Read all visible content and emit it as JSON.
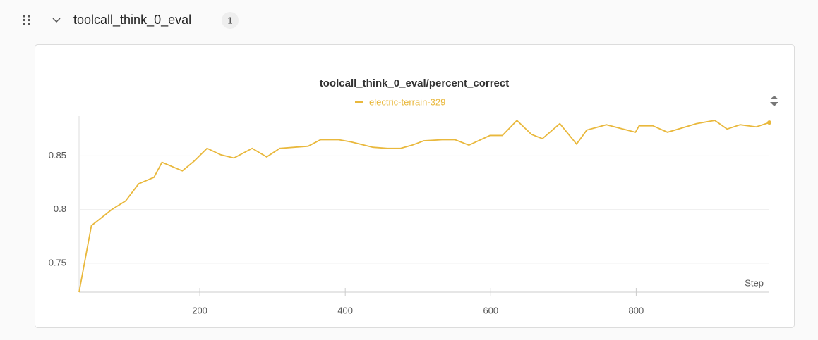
{
  "section": {
    "title": "toolcall_think_0_eval",
    "count": "1"
  },
  "chart_data": {
    "type": "line",
    "title": "toolcall_think_0_eval/percent_correct",
    "x_label": "Step",
    "x": [
      34,
      51,
      79,
      98,
      116,
      137,
      148,
      176,
      192,
      210,
      229,
      247,
      272,
      292,
      310,
      349,
      366,
      391,
      408,
      438,
      458,
      476,
      492,
      508,
      533,
      551,
      570,
      599,
      616,
      636,
      656,
      671,
      695,
      718,
      732,
      759,
      799,
      804,
      823,
      843,
      883,
      908,
      925,
      943,
      965,
      983
    ],
    "series": [
      {
        "name": "electric-terrain-329",
        "color": "#e9b83c",
        "values": [
          0.723,
          0.785,
          0.8,
          0.808,
          0.824,
          0.83,
          0.844,
          0.836,
          0.845,
          0.857,
          0.851,
          0.848,
          0.857,
          0.849,
          0.857,
          0.859,
          0.865,
          0.865,
          0.863,
          0.858,
          0.857,
          0.857,
          0.86,
          0.864,
          0.865,
          0.865,
          0.86,
          0.869,
          0.869,
          0.883,
          0.87,
          0.866,
          0.88,
          0.861,
          0.874,
          0.879,
          0.872,
          0.878,
          0.878,
          0.872,
          0.88,
          0.883,
          0.875,
          0.879,
          0.877,
          0.881
        ]
      }
    ],
    "xlim": [
      34,
      983
    ],
    "ylim": [
      0.723,
      0.887
    ],
    "xticks": [
      200,
      400,
      600,
      800
    ],
    "yticks": [
      0.75,
      0.8,
      0.85
    ],
    "grid": true
  }
}
